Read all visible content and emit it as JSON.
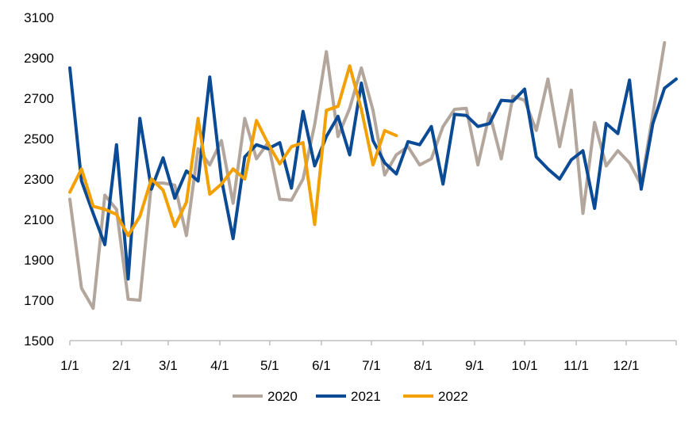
{
  "chart_data": {
    "type": "line",
    "title": "",
    "xlabel": "",
    "ylabel": "",
    "ylim": [
      1500,
      3100
    ],
    "yticks": [
      1500,
      1700,
      1900,
      2100,
      2300,
      2500,
      2700,
      2900,
      3100
    ],
    "xticks": [
      "1/1",
      "2/1",
      "3/1",
      "4/1",
      "5/1",
      "6/1",
      "7/1",
      "8/1",
      "9/1",
      "10/1",
      "11/1",
      "12/1"
    ],
    "xticks_week": [
      1,
      5.43,
      9.43,
      13.86,
      18.14,
      22.57,
      26.86,
      31.29,
      35.71,
      40,
      44.43,
      48.71
    ],
    "xlim": [
      1,
      53
    ],
    "grid": false,
    "legend_position": "bottom",
    "series": [
      {
        "name": "2020",
        "color": "#b3a69c",
        "x": [
          1,
          2,
          3,
          4,
          5,
          6,
          7,
          8,
          9,
          10,
          11,
          12,
          13,
          14,
          15,
          16,
          17,
          18,
          19,
          20,
          21,
          22,
          23,
          24,
          25,
          26,
          27,
          28,
          29,
          30,
          31,
          32,
          33,
          34,
          35,
          36,
          37,
          38,
          39,
          40,
          41,
          42,
          43,
          44,
          45,
          46,
          47,
          48,
          49,
          50,
          51,
          52
        ],
        "values": [
          2200,
          1760,
          1660,
          2220,
          2150,
          1705,
          1700,
          2280,
          2280,
          2270,
          2020,
          2450,
          2370,
          2490,
          2180,
          2600,
          2400,
          2480,
          2200,
          2195,
          2300,
          2570,
          2930,
          2510,
          2650,
          2850,
          2640,
          2320,
          2420,
          2460,
          2370,
          2400,
          2560,
          2645,
          2650,
          2370,
          2625,
          2400,
          2710,
          2690,
          2540,
          2795,
          2460,
          2740,
          2130,
          2580,
          2365,
          2440,
          2380,
          2270,
          2620,
          2975
        ]
      },
      {
        "name": "2021",
        "color": "#0b4a95",
        "x": [
          1,
          2,
          3,
          4,
          5,
          6,
          7,
          8,
          9,
          10,
          11,
          12,
          13,
          14,
          15,
          16,
          17,
          18,
          19,
          20,
          21,
          22,
          23,
          24,
          25,
          26,
          27,
          28,
          29,
          30,
          31,
          32,
          33,
          34,
          35,
          36,
          37,
          38,
          39,
          40,
          41,
          42,
          43,
          44,
          45,
          46,
          47,
          48,
          49,
          50,
          51,
          52,
          53
        ],
        "values": [
          2850,
          2290,
          2130,
          1975,
          2470,
          1805,
          2600,
          2250,
          2405,
          2205,
          2340,
          2290,
          2805,
          2300,
          2005,
          2410,
          2470,
          2450,
          2480,
          2255,
          2635,
          2365,
          2510,
          2610,
          2420,
          2775,
          2490,
          2380,
          2325,
          2485,
          2470,
          2560,
          2275,
          2620,
          2615,
          2560,
          2575,
          2690,
          2685,
          2745,
          2410,
          2350,
          2300,
          2395,
          2440,
          2155,
          2575,
          2525,
          2790,
          2250,
          2575,
          2750,
          2795
        ]
      },
      {
        "name": "2022",
        "color": "#f2a004",
        "x": [
          1,
          2,
          3,
          4,
          5,
          6,
          7,
          8,
          9,
          10,
          11,
          12,
          13,
          14,
          15,
          16,
          17,
          18,
          19,
          20,
          21,
          22,
          23,
          24,
          25,
          26,
          27,
          28,
          29
        ],
        "values": [
          2235,
          2350,
          2165,
          2150,
          2125,
          2020,
          2115,
          2300,
          2245,
          2065,
          2185,
          2600,
          2225,
          2275,
          2350,
          2300,
          2590,
          2475,
          2375,
          2460,
          2480,
          2075,
          2640,
          2660,
          2860,
          2645,
          2370,
          2540,
          2515
        ]
      }
    ]
  }
}
